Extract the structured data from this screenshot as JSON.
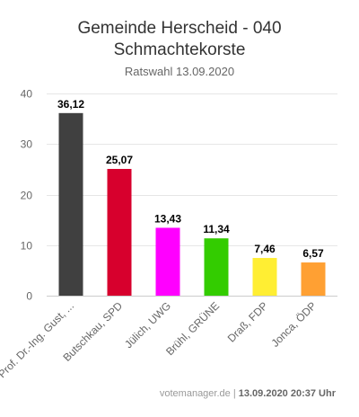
{
  "title_line1": "Gemeinde Herscheid - 040",
  "title_line2": "Schmachtekorste",
  "subtitle": "Ratswahl 13.09.2020",
  "footer": {
    "source": "votemanager.de",
    "separator": " | ",
    "timestamp": "13.09.2020 20:37 Uhr"
  },
  "chart_data": {
    "type": "bar",
    "categories": [
      "Prof. Dr.-Ing. Gust, ...",
      "Butschkau, SPD",
      "Jülich, UWG",
      "Brühl, GRÜNE",
      "Draß, FDP",
      "Jonca, ÖDP"
    ],
    "values": [
      36.12,
      25.07,
      13.43,
      11.34,
      7.46,
      6.57
    ],
    "value_labels": [
      "36,12",
      "25,07",
      "13,43",
      "11,34",
      "7,46",
      "6,57"
    ],
    "colors": [
      "#404040",
      "#d7002d",
      "#ff00ff",
      "#33cc00",
      "#ffee33",
      "#ffa033"
    ],
    "y_ticks": [
      0,
      10,
      20,
      30,
      40
    ],
    "ylim": [
      0,
      40
    ],
    "grid": true
  }
}
